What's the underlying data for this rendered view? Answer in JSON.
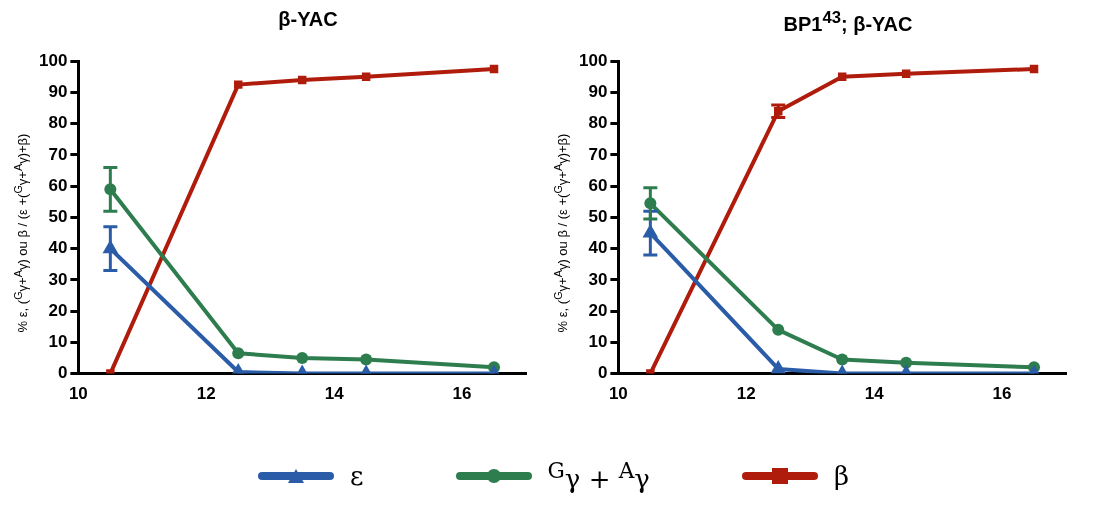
{
  "chart_data": [
    {
      "type": "line",
      "title": "β-YAC",
      "ylabel": "% ε, ($^{G}$γ+$^{A}$γ) ou β / (ε +($^{G}$γ+$^{A}$γ)+β)",
      "x": [
        10.5,
        12.5,
        13.5,
        14.5,
        16.5
      ],
      "xlim": [
        10,
        17
      ],
      "xticks": [
        10,
        12,
        14,
        16
      ],
      "ylim": [
        0,
        100
      ],
      "yticks": [
        0,
        10,
        20,
        30,
        40,
        50,
        60,
        70,
        80,
        90,
        100
      ],
      "grid": false,
      "legend": "bottom",
      "series": [
        {
          "name": "ε",
          "color": "#2a5ca8",
          "marker": "triangle",
          "values": [
            40,
            0.5,
            0,
            0,
            0
          ],
          "errors": [
            7,
            null,
            null,
            null,
            null
          ]
        },
        {
          "name": "$^{G}$γ + $^{A}$γ",
          "color": "#2e7d4f",
          "marker": "circle",
          "values": [
            59,
            6.5,
            5,
            4.5,
            2
          ],
          "errors": [
            7,
            null,
            null,
            null,
            null
          ]
        },
        {
          "name": "β",
          "color": "#b01c0c",
          "marker": "square",
          "values": [
            0,
            92.5,
            94,
            95,
            97.5
          ]
        }
      ]
    },
    {
      "type": "line",
      "title": "BP1$^{43}$; β-YAC",
      "ylabel": "% ε, ($^{G}$γ+$^{A}$γ) ou β / (ε +($^{G}$γ+$^{A}$γ)+β)",
      "x": [
        10.5,
        12.5,
        13.5,
        14.5,
        16.5
      ],
      "xlim": [
        10,
        17
      ],
      "xticks": [
        10,
        12,
        14,
        16
      ],
      "ylim": [
        0,
        100
      ],
      "yticks": [
        0,
        10,
        20,
        30,
        40,
        50,
        60,
        70,
        80,
        90,
        100
      ],
      "grid": false,
      "series": [
        {
          "color": "#2a5ca8",
          "marker": "triangle",
          "values": [
            45,
            1.5,
            0,
            0,
            0
          ],
          "errors": [
            7,
            null,
            null,
            null,
            null
          ]
        },
        {
          "color": "#2e7d4f",
          "marker": "circle",
          "values": [
            54.5,
            14,
            4.5,
            3.5,
            2
          ],
          "errors": [
            5,
            null,
            null,
            null,
            null
          ]
        },
        {
          "color": "#b01c0c",
          "marker": "square",
          "values": [
            0,
            84,
            95,
            96,
            97.5
          ],
          "errors": [
            null,
            2,
            null,
            null,
            null
          ]
        }
      ]
    }
  ]
}
